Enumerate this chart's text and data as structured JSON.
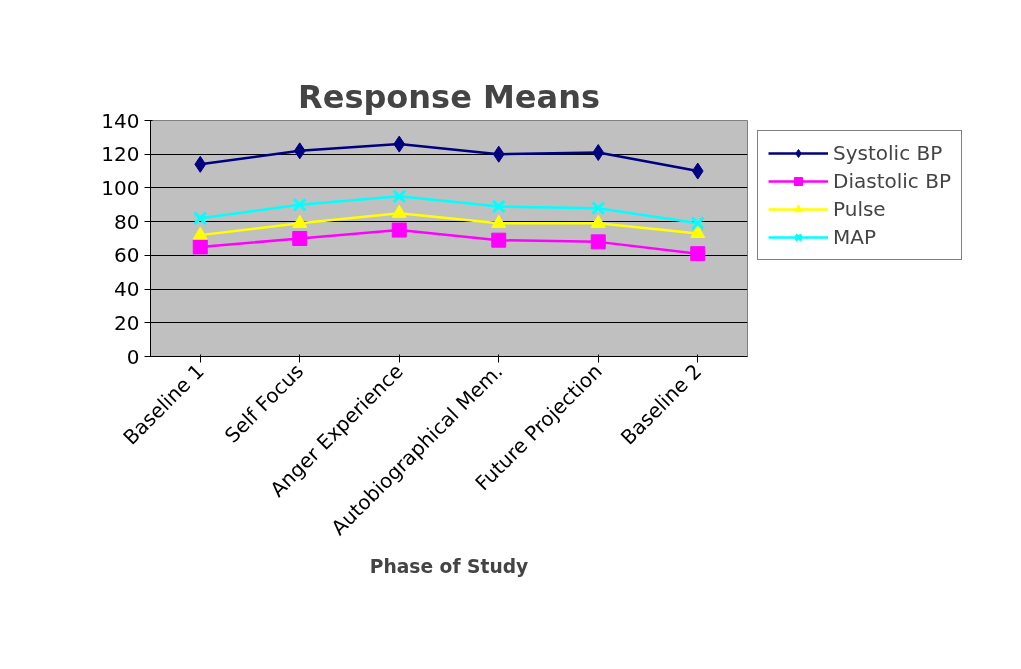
{
  "chart_data": {
    "type": "line",
    "title": "Response Means",
    "xlabel": "Phase of Study",
    "categories": [
      "Baseline 1",
      "Self Focus",
      "Anger Experience",
      "Autobiographical Mem.",
      "Future Projection",
      "Baseline 2"
    ],
    "series": [
      {
        "name": "Systolic BP",
        "color": "#000080",
        "marker": "diamond",
        "values": [
          114,
          122,
          126,
          120,
          121,
          110
        ]
      },
      {
        "name": "Diastolic BP",
        "color": "#ff00ff",
        "marker": "square",
        "values": [
          65,
          70,
          75,
          69,
          68,
          61
        ]
      },
      {
        "name": "Pulse",
        "color": "#ffff00",
        "marker": "triangle",
        "values": [
          72,
          79,
          85,
          79,
          79,
          73
        ]
      },
      {
        "name": "MAP",
        "color": "#00ffff",
        "marker": "cross",
        "values": [
          82,
          90,
          95,
          89,
          88,
          79
        ]
      }
    ],
    "ylim": [
      0,
      140
    ],
    "yticks": [
      0,
      20,
      40,
      60,
      80,
      100,
      120,
      140
    ],
    "grid": "y",
    "legend": "right",
    "line_style": "solid"
  }
}
